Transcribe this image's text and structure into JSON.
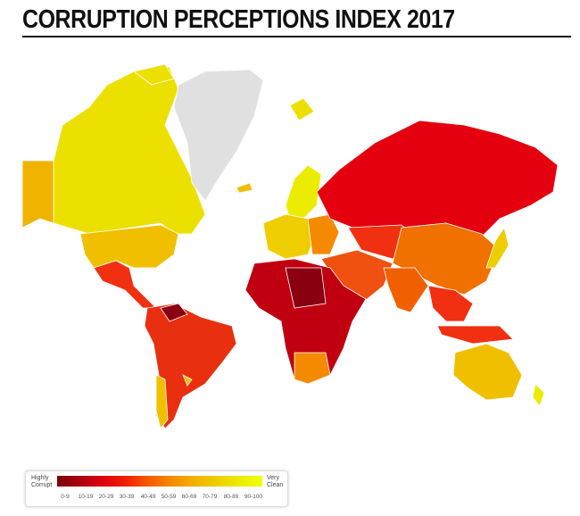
{
  "title": "CORRUPTION PERCEPTIONS INDEX 2017",
  "legend": {
    "low_label_1": "Highly",
    "low_label_2": "Corrupt",
    "high_label_1": "Very",
    "high_label_2": "Clean",
    "ranges": [
      "0-9",
      "10-19",
      "20-29",
      "30-39",
      "40-49",
      "50-59",
      "60-69",
      "70-79",
      "80-89",
      "90-100"
    ],
    "colors": [
      "#7a0008",
      "#a80010",
      "#e00010",
      "#f02000",
      "#f55a00",
      "#f58a00",
      "#f3b000",
      "#eece00",
      "#ecec00",
      "#f0ff10"
    ]
  },
  "no_data_color": "#e0e0e0"
}
